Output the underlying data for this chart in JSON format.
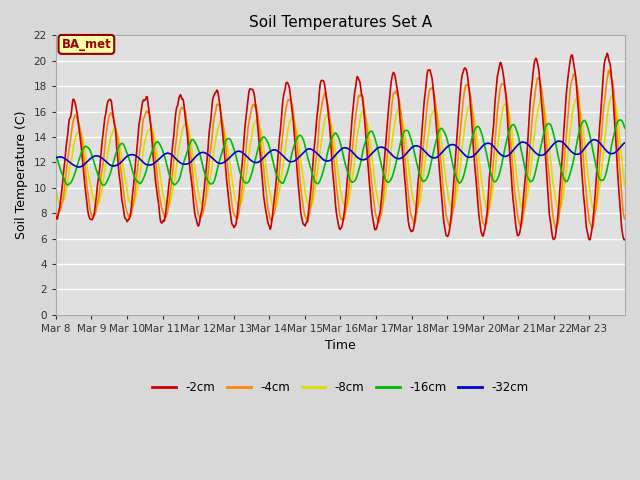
{
  "title": "Soil Temperatures Set A",
  "xlabel": "Time",
  "ylabel": "Soil Temperature (C)",
  "ylim": [
    0,
    22
  ],
  "yticks": [
    0,
    2,
    4,
    6,
    8,
    10,
    12,
    14,
    16,
    18,
    20,
    22
  ],
  "fig_bg_color": "#d8d8d8",
  "plot_bg_color": "#e0e0e0",
  "grid_color": "#ffffff",
  "colors": {
    "-2cm": "#cc0000",
    "-4cm": "#ff8800",
    "-8cm": "#dddd00",
    "-16cm": "#00bb00",
    "-32cm": "#0000cc"
  },
  "legend_labels": [
    "-2cm",
    "-4cm",
    "-8cm",
    "-16cm",
    "-32cm"
  ],
  "date_labels": [
    "Mar 8",
    "Mar 9",
    "Mar 10",
    "Mar 11",
    "Mar 12",
    "Mar 13",
    "Mar 14",
    "Mar 15",
    "Mar 16",
    "Mar 17",
    "Mar 18",
    "Mar 19",
    "Mar 20",
    "Mar 21",
    "Mar 22",
    "Mar 23"
  ],
  "annotation_text": "BA_met",
  "annotation_color": "#990000",
  "annotation_bg": "#ffffaa",
  "line_width": 1.2
}
